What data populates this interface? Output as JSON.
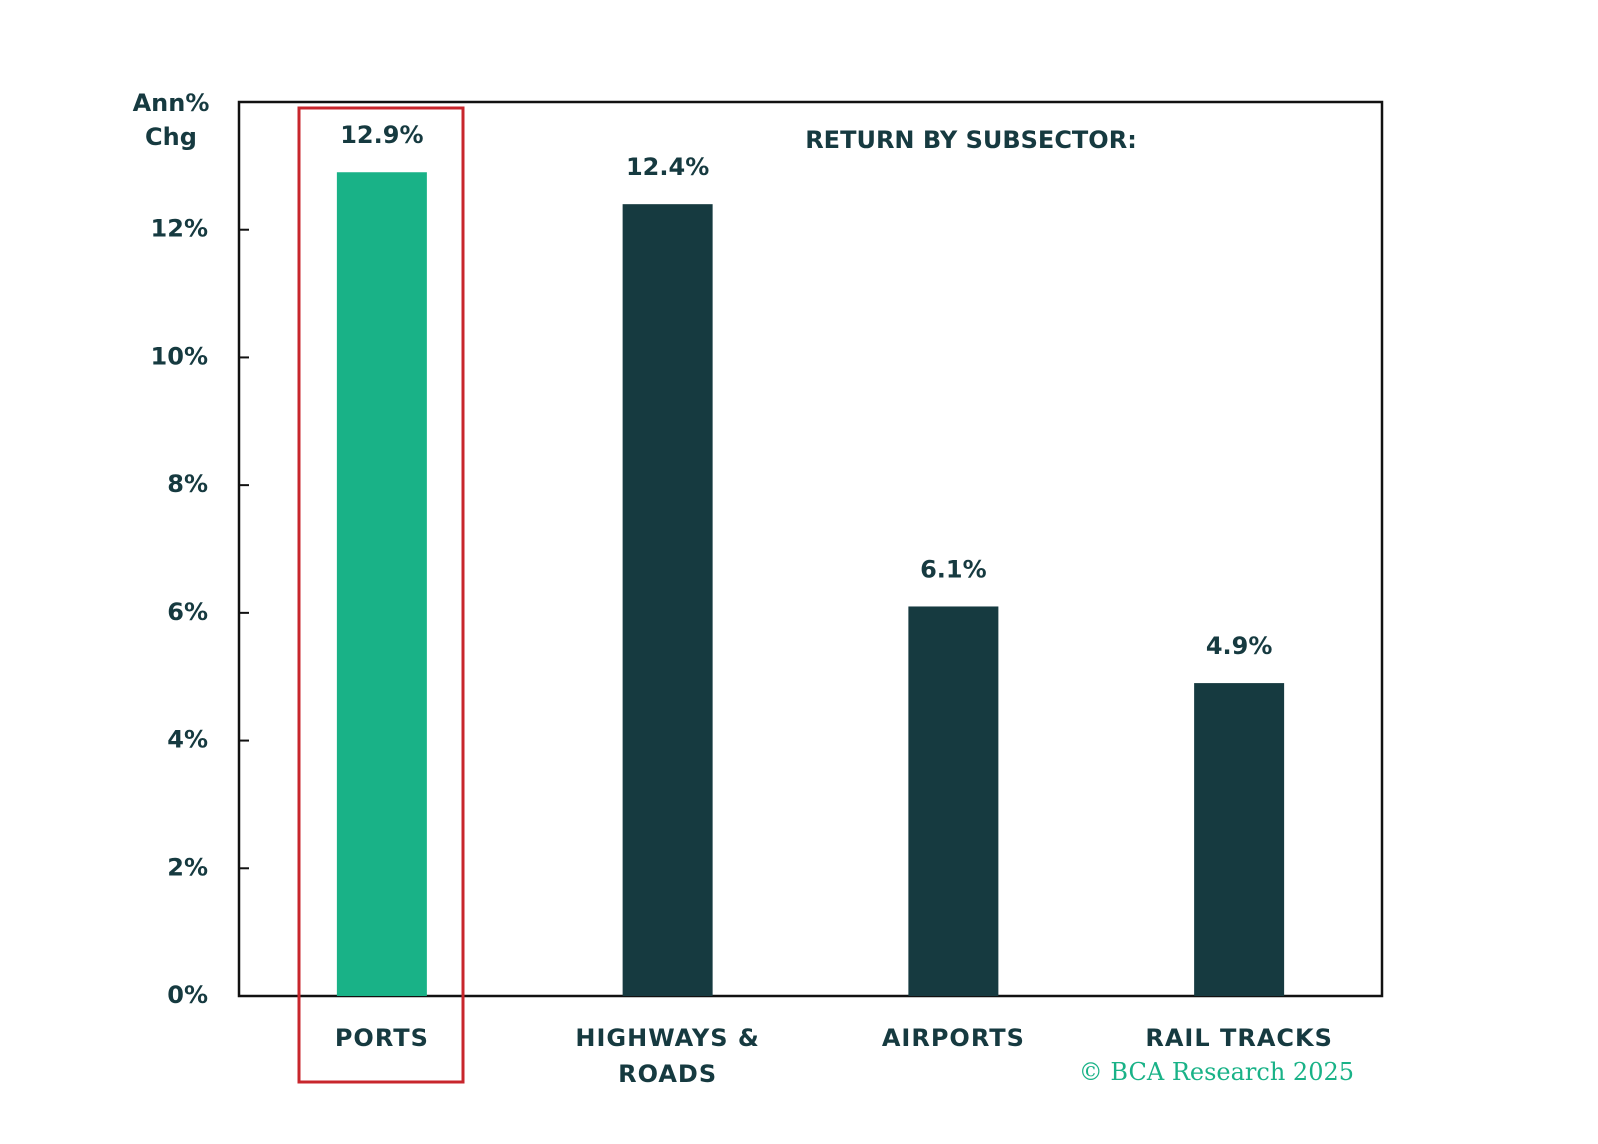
{
  "chart_data": {
    "type": "bar",
    "annotation": "RETURN BY SUBSECTOR:",
    "y_label": [
      "Ann%",
      "Chg"
    ],
    "source": "© BCA Research 2025",
    "categories": [
      "PORTS",
      "HIGHWAYS & ROADS",
      "AIRPORTS",
      "RAIL TRACKS"
    ],
    "values": [
      12.9,
      12.4,
      6.1,
      4.9
    ],
    "value_labels": [
      "12.9%",
      "12.4%",
      "6.1%",
      "4.9%"
    ],
    "colors": [
      "#19b287",
      "#163a40",
      "#163a40",
      "#163a40"
    ],
    "ylim": [
      0,
      14
    ],
    "yticks": [
      {
        "value": 0,
        "label": "0%"
      },
      {
        "value": 2,
        "label": "2%"
      },
      {
        "value": 4,
        "label": "4%"
      },
      {
        "value": 6,
        "label": "6%"
      },
      {
        "value": 8,
        "label": "8%"
      },
      {
        "value": 10,
        "label": "10%"
      },
      {
        "value": 12,
        "label": "12%"
      }
    ]
  }
}
